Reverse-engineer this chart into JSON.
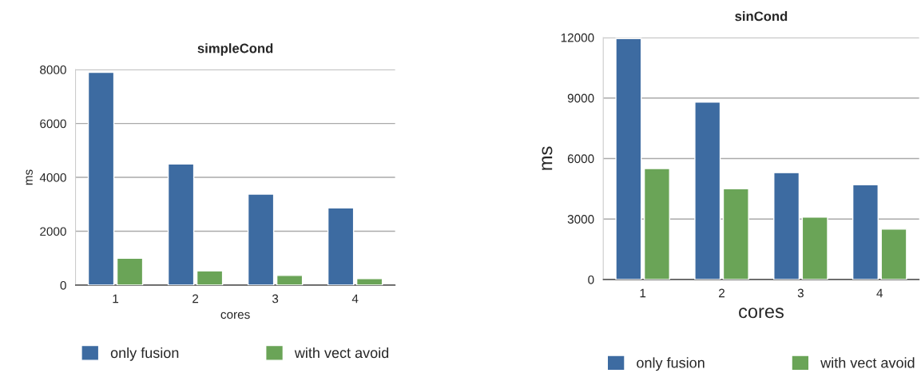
{
  "chart_data": [
    {
      "type": "bar",
      "title": "simpleCond",
      "xlabel": "cores",
      "ylabel": "ms",
      "categories": [
        "1",
        "2",
        "3",
        "4"
      ],
      "series": [
        {
          "name": "only fusion",
          "color": "#3d6ba1",
          "values": [
            7900,
            4500,
            3380,
            2870
          ]
        },
        {
          "name": "with vect avoid",
          "color": "#6aa457",
          "values": [
            1000,
            530,
            360,
            240
          ]
        }
      ],
      "ylim": [
        0,
        8000
      ],
      "yticks": [
        0,
        2000,
        4000,
        6000,
        8000
      ],
      "grid": "y",
      "legend": "bottom"
    },
    {
      "type": "bar",
      "title": "sinCond",
      "xlabel": "cores",
      "ylabel": "ms",
      "categories": [
        "1",
        "2",
        "3",
        "4"
      ],
      "series": [
        {
          "name": "only fusion",
          "color": "#3d6ba1",
          "values": [
            11950,
            8800,
            5300,
            4700
          ]
        },
        {
          "name": "with vect avoid",
          "color": "#6aa457",
          "values": [
            5500,
            4500,
            3100,
            2500
          ]
        }
      ],
      "ylim": [
        0,
        12000
      ],
      "yticks": [
        0,
        3000,
        6000,
        9000,
        12000
      ],
      "grid": "y",
      "legend": "bottom"
    }
  ]
}
